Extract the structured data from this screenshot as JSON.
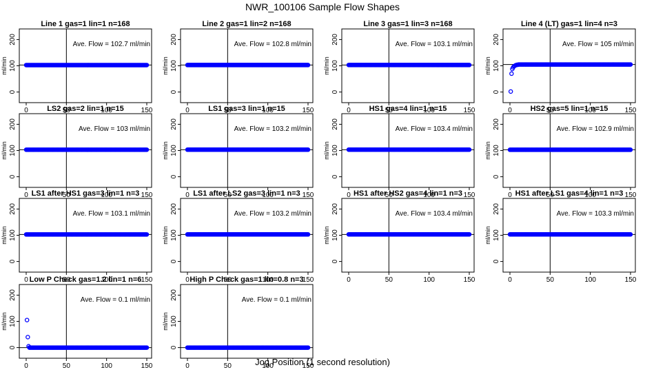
{
  "title": "NWR_100106  Sample Flow Shapes",
  "xlabel": "Jog Position (1 second resolution)",
  "colors": {
    "points": "#0000ff",
    "lines": "#000000"
  },
  "chart_data": [
    {
      "type": "scatter",
      "title": "Line 1 gas=1 lin=1 n=168",
      "ylabel": "ml/min",
      "xlim": [
        0,
        150
      ],
      "ylim": [
        -30,
        230
      ],
      "xticks": [
        0,
        50,
        100,
        150
      ],
      "yticks": [
        0,
        100,
        200
      ],
      "vline": 50,
      "hline": 103,
      "flow_label": "Ave. Flow =  102.7  ml/min",
      "x": [
        0,
        150
      ],
      "y": [
        102.7,
        102.7
      ]
    },
    {
      "type": "scatter",
      "title": "Line 2 gas=1 lin=2 n=168",
      "ylabel": "ml/min",
      "xlim": [
        0,
        150
      ],
      "ylim": [
        -30,
        230
      ],
      "xticks": [
        0,
        50,
        100,
        150
      ],
      "yticks": [
        0,
        100,
        200
      ],
      "vline": 50,
      "hline": 103,
      "flow_label": "Ave. Flow =  102.8  ml/min",
      "x": [
        0,
        150
      ],
      "y": [
        102.8,
        102.8
      ]
    },
    {
      "type": "scatter",
      "title": "Line 3 gas=1 lin=3 n=168",
      "ylabel": "ml/min",
      "xlim": [
        0,
        150
      ],
      "ylim": [
        -30,
        230
      ],
      "xticks": [
        0,
        50,
        100,
        150
      ],
      "yticks": [
        0,
        100,
        200
      ],
      "vline": 50,
      "hline": 103,
      "flow_label": "Ave. Flow =  103.1  ml/min",
      "x": [
        0,
        150
      ],
      "y": [
        103.1,
        103.1
      ]
    },
    {
      "type": "scatter",
      "title": "Line 4 (LT) gas=1 lin=4 n=3",
      "ylabel": "ml/min",
      "xlim": [
        0,
        150
      ],
      "ylim": [
        -30,
        230
      ],
      "xticks": [
        0,
        50,
        100,
        150
      ],
      "yticks": [
        0,
        100,
        200
      ],
      "vline": 50,
      "hline": 105,
      "flow_label": "Ave. Flow =  105  ml/min",
      "x": [
        1,
        2,
        3,
        4,
        5,
        6,
        7,
        8,
        9,
        10,
        11,
        150
      ],
      "y": [
        2,
        70,
        88,
        94,
        98,
        100,
        102,
        103,
        104,
        104,
        105,
        105
      ]
    },
    {
      "type": "scatter",
      "title": "LS2 gas=2 lin=1 n=15",
      "ylabel": "ml/min",
      "xlim": [
        0,
        150
      ],
      "ylim": [
        -30,
        230
      ],
      "xticks": [
        0,
        50,
        100,
        150
      ],
      "yticks": [
        0,
        100,
        200
      ],
      "vline": 50,
      "hline": 103,
      "flow_label": "Ave. Flow =  103  ml/min",
      "x": [
        0,
        150
      ],
      "y": [
        103,
        103
      ]
    },
    {
      "type": "scatter",
      "title": "LS1 gas=3 lin=1 n=15",
      "ylabel": "ml/min",
      "xlim": [
        0,
        150
      ],
      "ylim": [
        -30,
        230
      ],
      "xticks": [
        0,
        50,
        100,
        150
      ],
      "yticks": [
        0,
        100,
        200
      ],
      "vline": 50,
      "hline": 103,
      "flow_label": "Ave. Flow =  103.2  ml/min",
      "x": [
        0,
        150
      ],
      "y": [
        103.2,
        103.2
      ]
    },
    {
      "type": "scatter",
      "title": "HS1 gas=4 lin=1 n=15",
      "ylabel": "ml/min",
      "xlim": [
        0,
        150
      ],
      "ylim": [
        -30,
        230
      ],
      "xticks": [
        0,
        50,
        100,
        150
      ],
      "yticks": [
        0,
        100,
        200
      ],
      "vline": 50,
      "hline": 103,
      "flow_label": "Ave. Flow =  103.4  ml/min",
      "x": [
        0,
        150
      ],
      "y": [
        103.4,
        103.4
      ]
    },
    {
      "type": "scatter",
      "title": "HS2 gas=5 lin=1 n=15",
      "ylabel": "ml/min",
      "xlim": [
        0,
        150
      ],
      "ylim": [
        -30,
        230
      ],
      "xticks": [
        0,
        50,
        100,
        150
      ],
      "yticks": [
        0,
        100,
        200
      ],
      "vline": 50,
      "hline": 103,
      "flow_label": "Ave. Flow =  102.9  ml/min",
      "x": [
        0,
        150
      ],
      "y": [
        102.9,
        102.9
      ]
    },
    {
      "type": "scatter",
      "title": "LS1 after HS1 gas=3 lin=1 n=3",
      "ylabel": "ml/min",
      "xlim": [
        0,
        150
      ],
      "ylim": [
        -30,
        230
      ],
      "xticks": [
        0,
        50,
        100,
        150
      ],
      "yticks": [
        0,
        100,
        200
      ],
      "vline": 50,
      "hline": 103,
      "flow_label": "Ave. Flow =  103.1  ml/min",
      "x": [
        0,
        150
      ],
      "y": [
        103.1,
        103.1
      ]
    },
    {
      "type": "scatter",
      "title": "LS1 after LS2 gas=3 lin=1 n=3",
      "ylabel": "ml/min",
      "xlim": [
        0,
        150
      ],
      "ylim": [
        -30,
        230
      ],
      "xticks": [
        0,
        50,
        100,
        150
      ],
      "yticks": [
        0,
        100,
        200
      ],
      "vline": 50,
      "hline": 103,
      "flow_label": "Ave. Flow =  103.2  ml/min",
      "x": [
        0,
        150
      ],
      "y": [
        103.2,
        103.2
      ]
    },
    {
      "type": "scatter",
      "title": "HS1 after HS2 gas=4 lin=1 n=3",
      "ylabel": "ml/min",
      "xlim": [
        0,
        150
      ],
      "ylim": [
        -30,
        230
      ],
      "xticks": [
        0,
        50,
        100,
        150
      ],
      "yticks": [
        0,
        100,
        200
      ],
      "vline": 50,
      "hline": 103,
      "flow_label": "Ave. Flow =  103.4  ml/min",
      "x": [
        0,
        150
      ],
      "y": [
        103.4,
        103.4
      ]
    },
    {
      "type": "scatter",
      "title": "HS1 after LS1 gas=4 lin=1 n=3",
      "ylabel": "ml/min",
      "xlim": [
        0,
        150
      ],
      "ylim": [
        -30,
        230
      ],
      "xticks": [
        0,
        50,
        100,
        150
      ],
      "yticks": [
        0,
        100,
        200
      ],
      "vline": 50,
      "hline": 103,
      "flow_label": "Ave. Flow =  103.3  ml/min",
      "x": [
        0,
        150
      ],
      "y": [
        103.3,
        103.3
      ]
    },
    {
      "type": "scatter",
      "title": "Low P Check gas=1.2 lin=1 n=6",
      "ylabel": "ml/min",
      "xlim": [
        0,
        150
      ],
      "ylim": [
        -30,
        230
      ],
      "xticks": [
        0,
        50,
        100,
        150
      ],
      "yticks": [
        0,
        100,
        200
      ],
      "vline": 50,
      "hline": 0,
      "flow_label": "Ave. Flow =  0.1  ml/min",
      "x": [
        1,
        2,
        3,
        4,
        150
      ],
      "y": [
        105,
        40,
        5,
        0,
        0
      ]
    },
    {
      "type": "scatter",
      "title": "High P Check gas=1 lin=0.8 n=3",
      "ylabel": "ml/min",
      "xlim": [
        0,
        150
      ],
      "ylim": [
        -30,
        230
      ],
      "xticks": [
        0,
        50,
        100,
        150
      ],
      "yticks": [
        0,
        100,
        200
      ],
      "vline": 50,
      "hline": 0,
      "flow_label": "Ave. Flow =  0.1  ml/min",
      "x": [
        0,
        150
      ],
      "y": [
        0,
        0
      ]
    }
  ]
}
